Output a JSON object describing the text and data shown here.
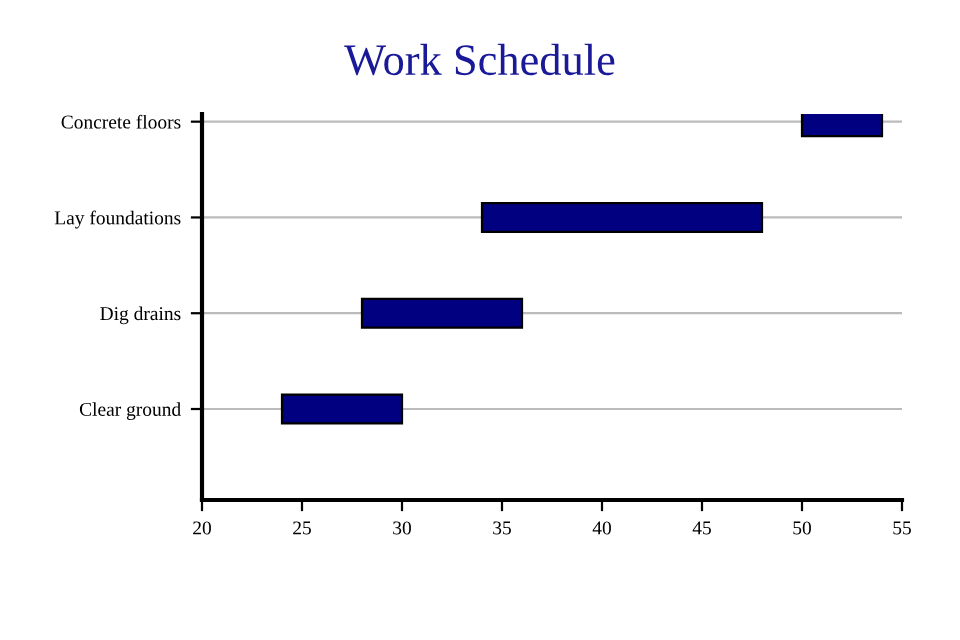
{
  "chart_data": {
    "type": "bar",
    "orientation": "horizontal",
    "title": "Work Schedule",
    "categories": [
      "Concrete floors",
      "Lay foundations",
      "Dig drains",
      "Clear ground"
    ],
    "base": [
      50,
      34,
      28,
      24
    ],
    "values": [
      4,
      14,
      8,
      6
    ],
    "color": "#000080",
    "xlim": [
      20,
      55
    ],
    "xticks": [
      20,
      25,
      30,
      35,
      40,
      45,
      50,
      55
    ],
    "grid": "y"
  }
}
